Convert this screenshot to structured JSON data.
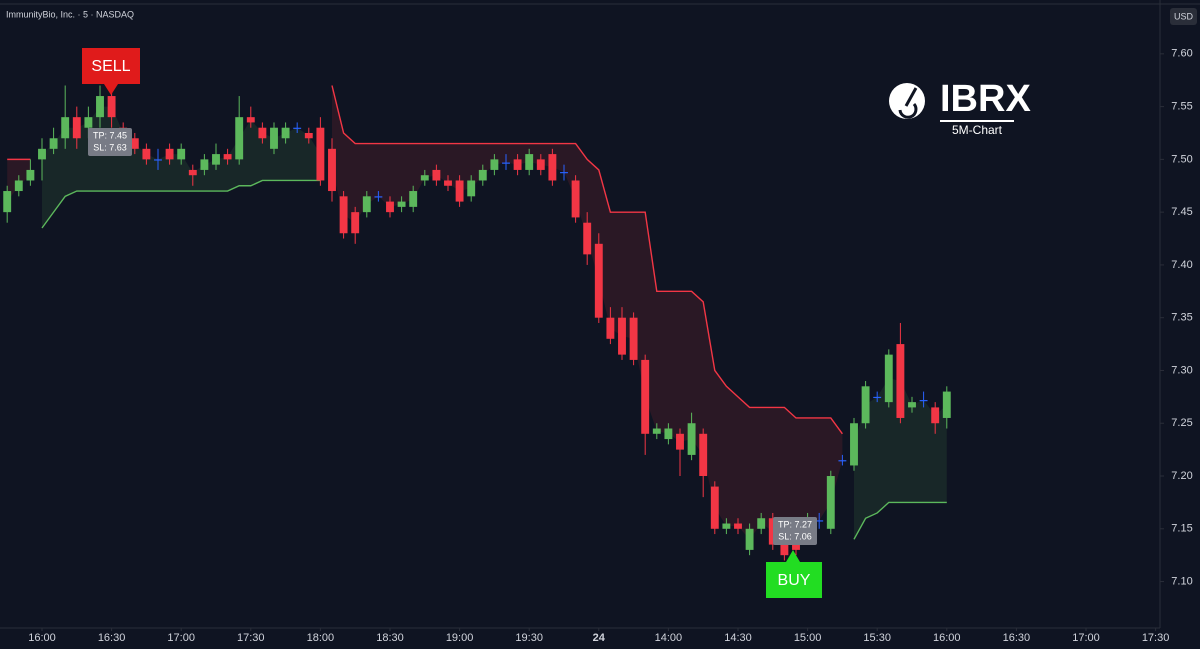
{
  "chart_data": {
    "type": "candlestick",
    "title": "ImmunityBio, Inc. · 5 · NASDAQ",
    "currency": "USD",
    "logo": {
      "ticker": "IBRX",
      "subtitle": "5M-Chart"
    },
    "colors": {
      "up": "#5cb85c",
      "down": "#f23645",
      "unchanged": "#2962ff"
    },
    "x": [
      -3,
      -2,
      -1,
      0,
      1,
      2,
      3,
      4,
      5,
      6,
      7,
      8,
      9,
      10,
      11,
      12,
      13,
      14,
      15,
      16,
      17,
      18,
      19,
      20,
      21,
      22,
      23,
      24,
      25,
      26,
      27,
      28,
      29,
      30,
      31,
      32,
      33,
      34,
      35,
      36,
      37,
      38,
      39,
      40,
      41,
      42,
      43,
      44,
      45,
      46,
      47,
      48,
      49,
      50,
      51,
      52,
      53,
      54,
      55,
      56,
      57,
      58,
      59,
      60,
      61,
      62,
      63,
      64,
      65,
      66,
      67,
      68,
      69,
      70,
      71,
      72,
      73,
      74,
      75,
      76,
      77,
      78
    ],
    "open": [
      7.45,
      7.47,
      7.48,
      7.5,
      7.51,
      7.52,
      7.54,
      7.53,
      7.54,
      7.56,
      7.53,
      7.52,
      7.51,
      7.5,
      7.51,
      7.5,
      7.49,
      7.49,
      7.495,
      7.505,
      7.5,
      7.54,
      7.53,
      7.51,
      7.52,
      7.53,
      7.525,
      7.53,
      7.51,
      7.465,
      7.45,
      7.45,
      7.465,
      7.46,
      7.455,
      7.455,
      7.48,
      7.49,
      7.48,
      7.48,
      7.465,
      7.48,
      7.49,
      7.497,
      7.5,
      7.49,
      7.5,
      7.505,
      7.488,
      7.48,
      7.44,
      7.42,
      7.35,
      7.35,
      7.35,
      7.31,
      7.24,
      7.235,
      7.24,
      7.22,
      7.24,
      7.19,
      7.15,
      7.155,
      7.13,
      7.15,
      7.16,
      7.14,
      7.15,
      7.15,
      7.158,
      7.15,
      7.215,
      7.21,
      7.25,
      7.275,
      7.27,
      7.325,
      7.265,
      7.272,
      7.265,
      7.255
    ],
    "high": [
      7.475,
      7.485,
      7.5,
      7.52,
      7.53,
      7.57,
      7.55,
      7.55,
      7.57,
      7.565,
      7.535,
      7.525,
      7.515,
      7.51,
      7.515,
      7.515,
      7.495,
      7.505,
      7.515,
      7.51,
      7.56,
      7.55,
      7.535,
      7.535,
      7.535,
      7.535,
      7.53,
      7.54,
      7.52,
      7.47,
      7.455,
      7.47,
      7.47,
      7.465,
      7.465,
      7.475,
      7.49,
      7.495,
      7.485,
      7.485,
      7.485,
      7.495,
      7.505,
      7.505,
      7.505,
      7.51,
      7.505,
      7.51,
      7.495,
      7.485,
      7.45,
      7.43,
      7.36,
      7.36,
      7.355,
      7.315,
      7.25,
      7.25,
      7.245,
      7.26,
      7.245,
      7.195,
      7.16,
      7.16,
      7.155,
      7.165,
      7.165,
      7.145,
      7.155,
      7.165,
      7.165,
      7.205,
      7.22,
      7.255,
      7.29,
      7.28,
      7.32,
      7.345,
      7.275,
      7.28,
      7.27,
      7.285
    ],
    "low": [
      7.44,
      7.465,
      7.475,
      7.48,
      7.505,
      7.51,
      7.51,
      7.52,
      7.53,
      7.53,
      7.515,
      7.505,
      7.495,
      7.49,
      7.495,
      7.495,
      7.475,
      7.485,
      7.49,
      7.495,
      7.495,
      7.53,
      7.515,
      7.505,
      7.515,
      7.525,
      7.515,
      7.475,
      7.46,
      7.425,
      7.42,
      7.445,
      7.46,
      7.445,
      7.45,
      7.45,
      7.475,
      7.475,
      7.47,
      7.455,
      7.46,
      7.475,
      7.485,
      7.49,
      7.485,
      7.485,
      7.485,
      7.475,
      7.48,
      7.44,
      7.4,
      7.345,
      7.325,
      7.31,
      7.305,
      7.22,
      7.235,
      7.23,
      7.2,
      7.215,
      7.18,
      7.145,
      7.145,
      7.145,
      7.125,
      7.145,
      7.13,
      7.12,
      7.125,
      7.145,
      7.15,
      7.145,
      7.21,
      7.205,
      7.245,
      7.27,
      7.265,
      7.25,
      7.26,
      7.265,
      7.24,
      7.245
    ],
    "close": [
      7.47,
      7.48,
      7.49,
      7.51,
      7.52,
      7.54,
      7.52,
      7.54,
      7.56,
      7.54,
      7.52,
      7.51,
      7.5,
      7.5,
      7.5,
      7.51,
      7.485,
      7.5,
      7.505,
      7.5,
      7.54,
      7.535,
      7.52,
      7.53,
      7.53,
      7.53,
      7.52,
      7.48,
      7.47,
      7.43,
      7.43,
      7.465,
      7.465,
      7.45,
      7.46,
      7.47,
      7.485,
      7.48,
      7.475,
      7.46,
      7.48,
      7.49,
      7.5,
      7.497,
      7.49,
      7.505,
      7.49,
      7.48,
      7.488,
      7.445,
      7.41,
      7.35,
      7.33,
      7.315,
      7.31,
      7.24,
      7.245,
      7.245,
      7.225,
      7.25,
      7.2,
      7.15,
      7.155,
      7.15,
      7.15,
      7.16,
      7.135,
      7.125,
      7.13,
      7.16,
      7.158,
      7.2,
      7.215,
      7.25,
      7.285,
      7.275,
      7.315,
      7.255,
      7.27,
      7.272,
      7.25,
      7.28
    ],
    "indicators": [
      {
        "color": "#f23645",
        "fill": "rgba(242,54,69,0.12)",
        "values": [
          7.5,
          7.5,
          7.5,
          null,
          null,
          null,
          null,
          null,
          null,
          null,
          null,
          null,
          null,
          null,
          null,
          null,
          null,
          null,
          null,
          null,
          null,
          null,
          null,
          null,
          null,
          null,
          null,
          null,
          7.57,
          7.525,
          7.515,
          7.515,
          7.515,
          7.515,
          7.515,
          7.515,
          7.515,
          7.515,
          7.515,
          7.515,
          7.515,
          7.515,
          7.515,
          7.515,
          7.515,
          7.515,
          7.515,
          7.515,
          7.515,
          7.515,
          7.5,
          7.49,
          7.45,
          7.45,
          7.45,
          7.45,
          7.375,
          7.375,
          7.375,
          7.375,
          7.365,
          7.3,
          7.285,
          7.275,
          7.265,
          7.265,
          7.265,
          7.265,
          7.255,
          7.255,
          7.255,
          7.255,
          7.24,
          null,
          null,
          null,
          null,
          null,
          null,
          null,
          null,
          null
        ]
      },
      {
        "color": "#5cb85c",
        "fill": "rgba(92,184,92,0.12)",
        "values": [
          null,
          null,
          null,
          7.435,
          7.45,
          7.465,
          7.47,
          7.47,
          7.47,
          7.47,
          7.47,
          7.47,
          7.47,
          7.47,
          7.47,
          7.47,
          7.47,
          7.47,
          7.47,
          7.47,
          7.475,
          7.475,
          7.48,
          7.48,
          7.48,
          7.48,
          7.48,
          7.48,
          null,
          null,
          null,
          null,
          null,
          null,
          null,
          null,
          null,
          null,
          null,
          null,
          null,
          null,
          null,
          null,
          null,
          null,
          null,
          null,
          null,
          null,
          null,
          null,
          null,
          null,
          null,
          null,
          null,
          null,
          null,
          null,
          null,
          null,
          null,
          null,
          null,
          null,
          null,
          null,
          null,
          null,
          null,
          null,
          null,
          7.14,
          7.16,
          7.165,
          7.175,
          7.175,
          7.175,
          7.175,
          7.175,
          7.175
        ]
      }
    ],
    "annotations": [
      {
        "text": "SELL"
      },
      {
        "text": "TP: 7.45"
      },
      {
        "text": "SL: 7.63"
      },
      {
        "text": "BUY"
      },
      {
        "text": "TP: 7.27"
      },
      {
        "text": "SL: 7.06"
      }
    ],
    "xlim": [
      -3.62,
      96.38
    ],
    "xticks": [
      {
        "value": 0,
        "label": "16:00"
      },
      {
        "value": 6,
        "label": "16:30"
      },
      {
        "value": 12,
        "label": "17:00"
      },
      {
        "value": 18,
        "label": "17:30"
      },
      {
        "value": 24,
        "label": "18:00"
      },
      {
        "value": 30,
        "label": "18:30"
      },
      {
        "value": 36,
        "label": "19:00"
      },
      {
        "value": 42,
        "label": "19:30"
      },
      {
        "value": 48,
        "label": "24"
      },
      {
        "value": 54,
        "label": "14:00"
      },
      {
        "value": 60,
        "label": "14:30"
      },
      {
        "value": 66,
        "label": "15:00"
      },
      {
        "value": 72,
        "label": "15:30"
      },
      {
        "value": 78,
        "label": "16:00"
      },
      {
        "value": 84,
        "label": "16:30"
      },
      {
        "value": 90,
        "label": "17:00"
      },
      {
        "value": 96,
        "label": "17:30"
      }
    ],
    "ylim": [
      7.056,
      7.651
    ],
    "yticks": [
      {
        "value": 7.1,
        "label": "7.10"
      },
      {
        "value": 7.15,
        "label": "7.15"
      },
      {
        "value": 7.2,
        "label": "7.20"
      },
      {
        "value": 7.25,
        "label": "7.25"
      },
      {
        "value": 7.3,
        "label": "7.30"
      },
      {
        "value": 7.35,
        "label": "7.35"
      },
      {
        "value": 7.4,
        "label": "7.40"
      },
      {
        "value": 7.45,
        "label": "7.45"
      },
      {
        "value": 7.5,
        "label": "7.50"
      },
      {
        "value": 7.55,
        "label": "7.55"
      },
      {
        "value": 7.6,
        "label": "7.60"
      }
    ],
    "grid": false
  }
}
